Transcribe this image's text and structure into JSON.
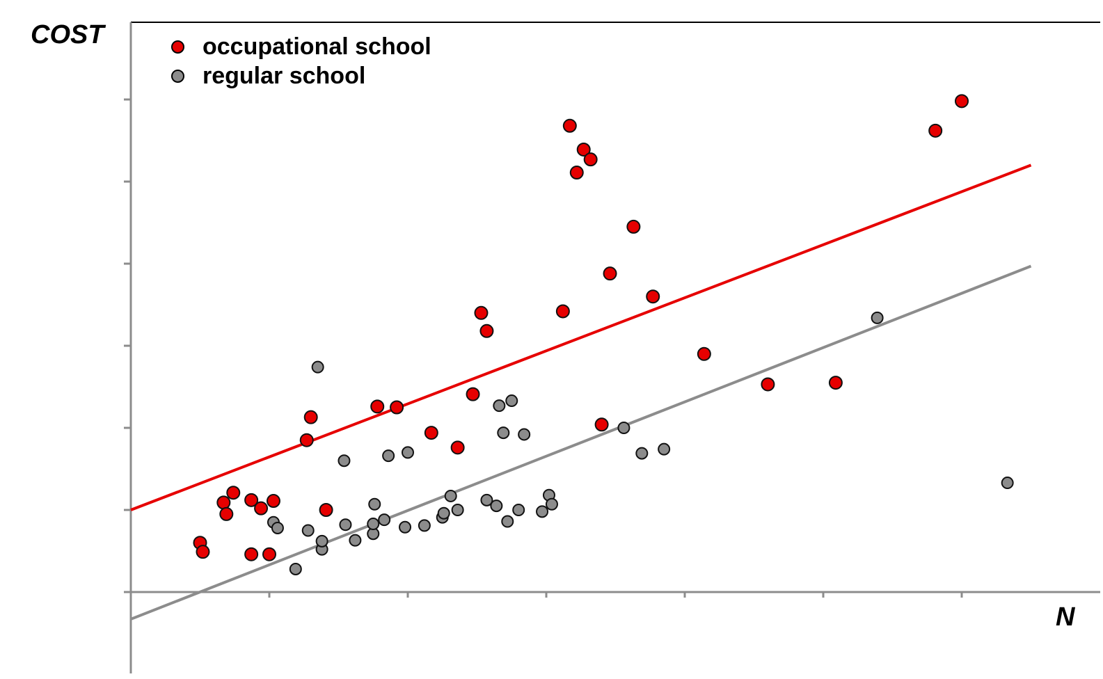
{
  "chart_data": {
    "type": "scatter",
    "xlabel": "N",
    "ylabel": "COST",
    "xlim": [
      0,
      7
    ],
    "ylim": [
      -1,
      7
    ],
    "grid": false,
    "legend_position": "top-left",
    "series": [
      {
        "name": "occupational school",
        "color": "#e60000",
        "points": [
          [
            0.5,
            0.6
          ],
          [
            0.52,
            0.49
          ],
          [
            0.67,
            1.09
          ],
          [
            0.69,
            0.95
          ],
          [
            0.74,
            1.21
          ],
          [
            0.87,
            1.12
          ],
          [
            0.87,
            0.46
          ],
          [
            0.94,
            1.02
          ],
          [
            1.0,
            0.46
          ],
          [
            1.03,
            1.11
          ],
          [
            1.27,
            1.85
          ],
          [
            1.3,
            2.13
          ],
          [
            1.41,
            1.0
          ],
          [
            1.78,
            2.26
          ],
          [
            1.92,
            2.25
          ],
          [
            2.17,
            1.94
          ],
          [
            2.36,
            1.76
          ],
          [
            2.47,
            2.41
          ],
          [
            2.53,
            3.4
          ],
          [
            2.57,
            3.18
          ],
          [
            3.12,
            3.42
          ],
          [
            3.17,
            5.68
          ],
          [
            3.22,
            5.11
          ],
          [
            3.27,
            5.39
          ],
          [
            3.32,
            5.27
          ],
          [
            3.4,
            2.04
          ],
          [
            3.46,
            3.88
          ],
          [
            3.63,
            4.45
          ],
          [
            3.77,
            3.6
          ],
          [
            4.14,
            2.9
          ],
          [
            4.6,
            2.53
          ],
          [
            5.09,
            2.55
          ],
          [
            5.81,
            5.62
          ],
          [
            6.0,
            5.98
          ]
        ],
        "trend": [
          [
            0,
            1.0
          ],
          [
            6.5,
            5.2
          ]
        ]
      },
      {
        "name": "regular school",
        "color": "#8c8c8c",
        "points": [
          [
            1.03,
            0.85
          ],
          [
            1.06,
            0.78
          ],
          [
            1.19,
            0.28
          ],
          [
            1.28,
            0.75
          ],
          [
            1.35,
            2.74
          ],
          [
            1.38,
            0.52
          ],
          [
            1.38,
            0.62
          ],
          [
            1.54,
            1.6
          ],
          [
            1.55,
            0.82
          ],
          [
            1.62,
            0.63
          ],
          [
            1.75,
            0.71
          ],
          [
            1.75,
            0.83
          ],
          [
            1.76,
            1.07
          ],
          [
            1.83,
            0.88
          ],
          [
            1.86,
            1.66
          ],
          [
            1.98,
            0.79
          ],
          [
            2.0,
            1.7
          ],
          [
            2.12,
            0.81
          ],
          [
            2.25,
            0.91
          ],
          [
            2.26,
            0.96
          ],
          [
            2.31,
            1.17
          ],
          [
            2.36,
            1.0
          ],
          [
            2.57,
            1.12
          ],
          [
            2.64,
            1.05
          ],
          [
            2.66,
            2.27
          ],
          [
            2.69,
            1.94
          ],
          [
            2.72,
            0.86
          ],
          [
            2.75,
            2.33
          ],
          [
            2.8,
            1.0
          ],
          [
            2.84,
            1.92
          ],
          [
            2.97,
            0.98
          ],
          [
            3.02,
            1.18
          ],
          [
            3.04,
            1.07
          ],
          [
            3.56,
            2.0
          ],
          [
            3.69,
            1.69
          ],
          [
            3.85,
            1.74
          ],
          [
            5.39,
            3.34
          ],
          [
            6.33,
            1.33
          ]
        ],
        "trend": [
          [
            0,
            -0.33
          ],
          [
            6.5,
            3.97
          ]
        ]
      }
    ]
  }
}
